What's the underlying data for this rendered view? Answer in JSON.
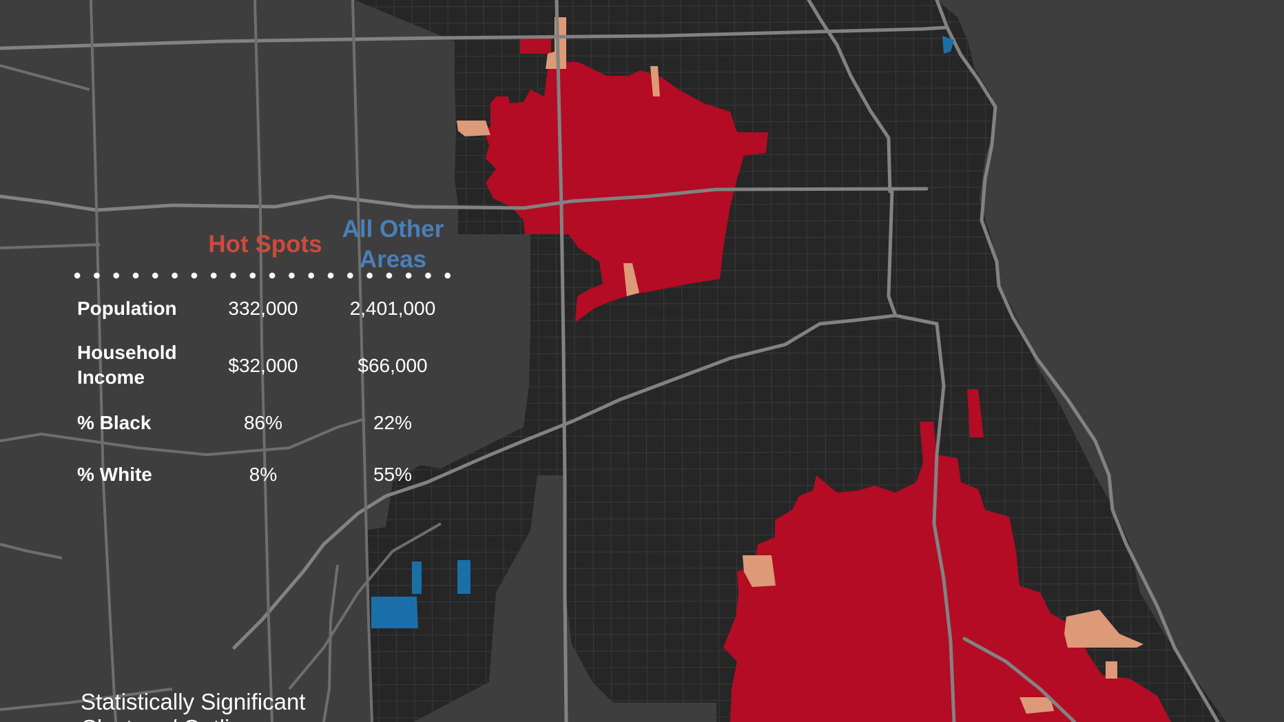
{
  "colors": {
    "background": "#3e3e3e",
    "tract_base": "#262626",
    "hot_spot": "#b30c24",
    "hot_outlier": "#dd9a78",
    "cold_spot": "#1b6fa8",
    "road": "#828282",
    "hot_header": "#cc4b3c",
    "other_header": "#4a7fb8",
    "text": "#ffffff"
  },
  "table": {
    "col_hot": "Hot Spots",
    "col_other_line1": "All Other",
    "col_other_line2": "Areas",
    "rows": [
      {
        "label_line1": "Population",
        "label_line2": "",
        "hot": "332,000",
        "other": "2,401,000"
      },
      {
        "label_line1": "Household",
        "label_line2": "Income",
        "hot": "$32,000",
        "other": "$66,000"
      },
      {
        "label_line1": "% Black",
        "label_line2": "",
        "hot": "86%",
        "other": "22%"
      },
      {
        "label_line1": "% White",
        "label_line2": "",
        "hot": "8%",
        "other": "55%"
      }
    ]
  },
  "legend": {
    "line1": "Statistically Significant",
    "line2": "Clusters / Outliers"
  }
}
